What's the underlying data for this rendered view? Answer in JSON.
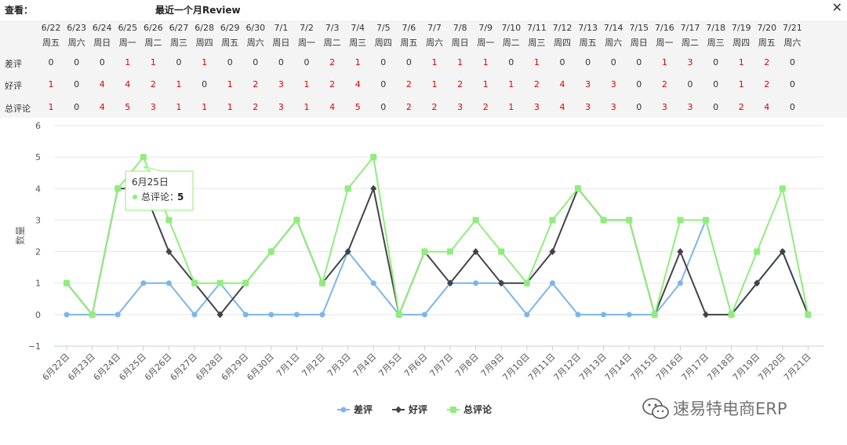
{
  "header": {
    "label": "查看：",
    "title": "最近一个月Review"
  },
  "table": {
    "row_labels": [
      "差评",
      "好评",
      "总评论"
    ],
    "weekdays": [
      "周五",
      "周六",
      "周日",
      "周一",
      "周二",
      "周三",
      "周四",
      "周五",
      "周六",
      "周日",
      "周一",
      "周二",
      "周三",
      "周四",
      "周五",
      "周六",
      "周日",
      "周一",
      "周二",
      "周三",
      "周四",
      "周五",
      "周六",
      "周日",
      "周一",
      "周二",
      "周三",
      "周四",
      "周五",
      "周六"
    ]
  },
  "chart_data": {
    "type": "line",
    "dates": [
      "6/22",
      "6/23",
      "6/24",
      "6/25",
      "6/26",
      "6/27",
      "6/28",
      "6/29",
      "6/30",
      "7/1",
      "7/2",
      "7/3",
      "7/4",
      "7/5",
      "7/6",
      "7/7",
      "7/8",
      "7/9",
      "7/10",
      "7/11",
      "7/12",
      "7/13",
      "7/14",
      "7/15",
      "7/16",
      "7/17",
      "7/18",
      "7/19",
      "7/20",
      "7/21"
    ],
    "categories": [
      "6月22日",
      "6月23日",
      "6月24日",
      "6月25日",
      "6月26日",
      "6月27日",
      "6月28日",
      "6月29日",
      "6月30日",
      "7月1日",
      "7月2日",
      "7月3日",
      "7月4日",
      "7月5日",
      "7月6日",
      "7月7日",
      "7月8日",
      "7月9日",
      "7月10日",
      "7月11日",
      "7月12日",
      "7月13日",
      "7月14日",
      "7月15日",
      "7月16日",
      "7月17日",
      "7月18日",
      "7月19日",
      "7月20日",
      "7月21日"
    ],
    "series": [
      {
        "name": "差评",
        "color": "#7cb5ec",
        "marker": "circle",
        "values": [
          0,
          0,
          0,
          1,
          1,
          0,
          1,
          0,
          0,
          0,
          0,
          2,
          1,
          0,
          0,
          1,
          1,
          1,
          0,
          1,
          0,
          0,
          0,
          0,
          1,
          3,
          0,
          1,
          2,
          0
        ]
      },
      {
        "name": "好评",
        "color": "#434348",
        "marker": "diamond",
        "values": [
          1,
          0,
          4,
          4,
          2,
          1,
          0,
          1,
          2,
          3,
          1,
          2,
          4,
          0,
          2,
          1,
          2,
          1,
          1,
          2,
          4,
          3,
          3,
          0,
          2,
          0,
          0,
          1,
          2,
          0
        ]
      },
      {
        "name": "总评论",
        "color": "#90ed7d",
        "marker": "square",
        "values": [
          1,
          0,
          4,
          5,
          3,
          1,
          1,
          1,
          2,
          3,
          1,
          4,
          5,
          0,
          2,
          2,
          3,
          2,
          1,
          3,
          4,
          3,
          3,
          0,
          3,
          3,
          0,
          2,
          4,
          0
        ]
      }
    ],
    "ylabel": "数量",
    "ylim": [
      -1,
      6
    ],
    "yticks": [
      -1,
      0,
      1,
      2,
      3,
      4,
      5,
      6
    ],
    "grid": true,
    "legend_position": "bottom-center",
    "tooltip": {
      "title": "6月25日",
      "series": "总评论",
      "label": "总评论",
      "value": "5",
      "index": 3
    }
  },
  "watermark": {
    "text": "速易特电商ERP"
  }
}
